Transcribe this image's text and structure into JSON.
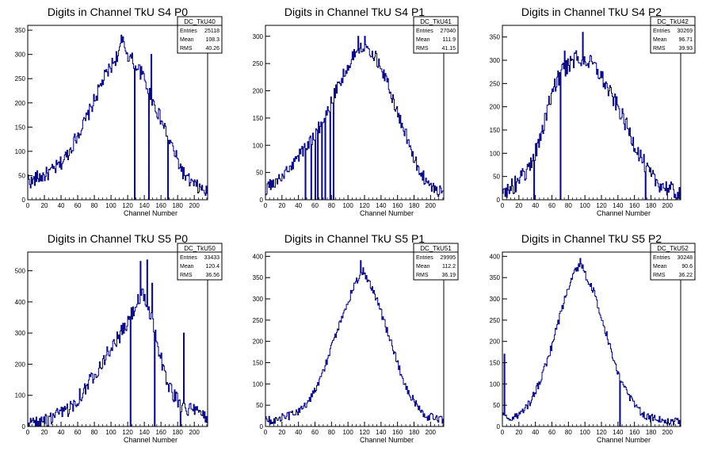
{
  "chart_data": [
    {
      "type": "histogram",
      "title": "Digits in Channel TkU S4 P0",
      "xlabel": "Channel Number",
      "xlim": [
        0,
        216
      ],
      "ylim": [
        0,
        360
      ],
      "xticks": [
        0,
        20,
        40,
        60,
        80,
        100,
        120,
        140,
        160,
        180,
        200
      ],
      "yticks": [
        0,
        50,
        100,
        150,
        200,
        250,
        300,
        350
      ],
      "stats": {
        "name": "DC_TkU40",
        "entries_label": "Entries",
        "mean_label": "Mean",
        "rms_label": "RMS",
        "entries": "25118",
        "mean": "108.3",
        "rms": "40.26"
      },
      "profile": [
        [
          0,
          45
        ],
        [
          5,
          35
        ],
        [
          10,
          45
        ],
        [
          20,
          50
        ],
        [
          30,
          60
        ],
        [
          40,
          75
        ],
        [
          50,
          100
        ],
        [
          60,
          135
        ],
        [
          70,
          165
        ],
        [
          80,
          205
        ],
        [
          90,
          245
        ],
        [
          100,
          275
        ],
        [
          110,
          305
        ],
        [
          115,
          325
        ],
        [
          120,
          300
        ],
        [
          130,
          280
        ],
        [
          140,
          250
        ],
        [
          150,
          205
        ],
        [
          160,
          165
        ],
        [
          170,
          125
        ],
        [
          180,
          80
        ],
        [
          190,
          45
        ],
        [
          200,
          30
        ],
        [
          210,
          20
        ],
        [
          216,
          15
        ]
      ],
      "noise": 15,
      "dips": [
        128,
        145,
        168
      ],
      "spikes": [
        [
          112,
          340
        ],
        [
          148,
          300
        ]
      ]
    },
    {
      "type": "histogram",
      "title": "Digits in Channel TkU S4 P1",
      "xlabel": "Channel Number",
      "xlim": [
        0,
        216
      ],
      "ylim": [
        0,
        320
      ],
      "xticks": [
        0,
        20,
        40,
        60,
        80,
        100,
        120,
        140,
        160,
        180,
        200
      ],
      "yticks": [
        0,
        50,
        100,
        150,
        200,
        250,
        300
      ],
      "stats": {
        "name": "DC_TkU41",
        "entries_label": "Entries",
        "mean_label": "Mean",
        "rms_label": "RMS",
        "entries": "27040",
        "mean": "111.9",
        "rms": "41.15"
      },
      "profile": [
        [
          0,
          20
        ],
        [
          10,
          30
        ],
        [
          20,
          40
        ],
        [
          30,
          60
        ],
        [
          40,
          80
        ],
        [
          50,
          100
        ],
        [
          60,
          120
        ],
        [
          70,
          145
        ],
        [
          80,
          180
        ],
        [
          90,
          215
        ],
        [
          100,
          245
        ],
        [
          110,
          275
        ],
        [
          120,
          285
        ],
        [
          130,
          270
        ],
        [
          140,
          245
        ],
        [
          150,
          205
        ],
        [
          160,
          160
        ],
        [
          170,
          120
        ],
        [
          180,
          75
        ],
        [
          190,
          45
        ],
        [
          200,
          25
        ],
        [
          210,
          15
        ],
        [
          216,
          12
        ]
      ],
      "noise": 12,
      "dips": [
        48,
        55,
        60,
        63,
        68,
        72,
        78,
        82
      ],
      "spikes": [
        [
          112,
          300
        ],
        [
          120,
          300
        ]
      ]
    },
    {
      "type": "histogram",
      "title": "Digits in Channel TkU S4 P2",
      "xlabel": "Channel Number",
      "xlim": [
        0,
        216
      ],
      "ylim": [
        0,
        375
      ],
      "xticks": [
        0,
        20,
        40,
        60,
        80,
        100,
        120,
        140,
        160,
        180,
        200
      ],
      "yticks": [
        0,
        50,
        100,
        150,
        200,
        250,
        300,
        350
      ],
      "stats": {
        "name": "DC_TkU42",
        "entries_label": "Entries",
        "mean_label": "Mean",
        "rms_label": "RMS",
        "entries": "30269",
        "mean": "96.71",
        "rms": "39.93"
      },
      "profile": [
        [
          0,
          20
        ],
        [
          10,
          25
        ],
        [
          20,
          40
        ],
        [
          30,
          60
        ],
        [
          40,
          100
        ],
        [
          50,
          160
        ],
        [
          60,
          230
        ],
        [
          70,
          270
        ],
        [
          80,
          290
        ],
        [
          90,
          305
        ],
        [
          100,
          300
        ],
        [
          110,
          290
        ],
        [
          120,
          265
        ],
        [
          130,
          230
        ],
        [
          140,
          200
        ],
        [
          150,
          160
        ],
        [
          160,
          120
        ],
        [
          170,
          85
        ],
        [
          180,
          50
        ],
        [
          190,
          35
        ],
        [
          200,
          25
        ],
        [
          210,
          15
        ],
        [
          216,
          10
        ]
      ],
      "noise": 18,
      "dips": [
        38,
        70,
        173
      ],
      "spikes": [
        [
          97,
          360
        ],
        [
          75,
          320
        ]
      ]
    },
    {
      "type": "histogram",
      "title": "Digits in Channel TkU S5 P0",
      "xlabel": "Channel Number",
      "xlim": [
        0,
        216
      ],
      "ylim": [
        0,
        560
      ],
      "xticks": [
        0,
        20,
        40,
        60,
        80,
        100,
        120,
        140,
        160,
        180,
        200
      ],
      "yticks": [
        0,
        100,
        200,
        300,
        400,
        500
      ],
      "stats": {
        "name": "DC_TkU50",
        "entries_label": "Entries",
        "mean_label": "Mean",
        "rms_label": "RMS",
        "entries": "33433",
        "mean": "120.4",
        "rms": "36.56"
      },
      "profile": [
        [
          0,
          5
        ],
        [
          10,
          10
        ],
        [
          20,
          15
        ],
        [
          30,
          25
        ],
        [
          40,
          40
        ],
        [
          50,
          60
        ],
        [
          60,
          90
        ],
        [
          70,
          125
        ],
        [
          80,
          170
        ],
        [
          90,
          210
        ],
        [
          100,
          250
        ],
        [
          110,
          290
        ],
        [
          120,
          330
        ],
        [
          130,
          390
        ],
        [
          138,
          420
        ],
        [
          145,
          380
        ],
        [
          155,
          280
        ],
        [
          165,
          160
        ],
        [
          175,
          100
        ],
        [
          185,
          70
        ],
        [
          195,
          55
        ],
        [
          205,
          40
        ],
        [
          216,
          30
        ]
      ],
      "noise": 25,
      "dips": [
        123,
        152,
        183
      ],
      "spikes": [
        [
          135,
          530
        ],
        [
          143,
          535
        ],
        [
          149,
          460
        ],
        [
          187,
          300
        ]
      ]
    },
    {
      "type": "histogram",
      "title": "Digits in Channel TkU S5 P1",
      "xlabel": "Channel Number",
      "xlim": [
        0,
        216
      ],
      "ylim": [
        0,
        410
      ],
      "xticks": [
        0,
        20,
        40,
        60,
        80,
        100,
        120,
        140,
        160,
        180,
        200
      ],
      "yticks": [
        0,
        50,
        100,
        150,
        200,
        250,
        300,
        350,
        400
      ],
      "stats": {
        "name": "DC_TkU51",
        "entries_label": "Entries",
        "mean_label": "Mean",
        "rms_label": "RMS",
        "entries": "29995",
        "mean": "112.2",
        "rms": "36.19"
      },
      "profile": [
        [
          0,
          15
        ],
        [
          10,
          15
        ],
        [
          20,
          20
        ],
        [
          30,
          25
        ],
        [
          40,
          35
        ],
        [
          50,
          55
        ],
        [
          60,
          85
        ],
        [
          70,
          130
        ],
        [
          80,
          185
        ],
        [
          90,
          240
        ],
        [
          100,
          295
        ],
        [
          110,
          340
        ],
        [
          118,
          365
        ],
        [
          125,
          345
        ],
        [
          135,
          300
        ],
        [
          145,
          240
        ],
        [
          155,
          180
        ],
        [
          165,
          120
        ],
        [
          175,
          75
        ],
        [
          185,
          45
        ],
        [
          195,
          25
        ],
        [
          205,
          18
        ],
        [
          216,
          15
        ]
      ],
      "noise": 10,
      "dips": [],
      "spikes": [
        [
          115,
          390
        ]
      ]
    },
    {
      "type": "histogram",
      "title": "Digits in Channel TkU S5 P2",
      "xlabel": "Channel Number",
      "xlim": [
        0,
        216
      ],
      "ylim": [
        0,
        410
      ],
      "xticks": [
        0,
        20,
        40,
        60,
        80,
        100,
        120,
        140,
        160,
        180,
        200
      ],
      "yticks": [
        0,
        50,
        100,
        150,
        200,
        250,
        300,
        350,
        400
      ],
      "stats": {
        "name": "DC_TkU52",
        "entries_label": "Entries",
        "mean_label": "Mean",
        "rms_label": "RMS",
        "entries": "30248",
        "mean": "90.6",
        "rms": "36.22"
      },
      "profile": [
        [
          0,
          40
        ],
        [
          5,
          20
        ],
        [
          10,
          20
        ],
        [
          20,
          25
        ],
        [
          30,
          45
        ],
        [
          40,
          80
        ],
        [
          50,
          130
        ],
        [
          60,
          190
        ],
        [
          70,
          260
        ],
        [
          80,
          330
        ],
        [
          88,
          370
        ],
        [
          95,
          380
        ],
        [
          100,
          360
        ],
        [
          110,
          320
        ],
        [
          120,
          260
        ],
        [
          130,
          190
        ],
        [
          140,
          130
        ],
        [
          150,
          80
        ],
        [
          160,
          50
        ],
        [
          170,
          30
        ],
        [
          180,
          20
        ],
        [
          195,
          15
        ],
        [
          216,
          10
        ]
      ],
      "noise": 10,
      "dips": [
        142
      ],
      "spikes": [
        [
          2,
          170
        ],
        [
          94,
          395
        ]
      ]
    }
  ],
  "colors": {
    "line": "#00007f",
    "frame": "#000000",
    "background": "#ffffff"
  }
}
